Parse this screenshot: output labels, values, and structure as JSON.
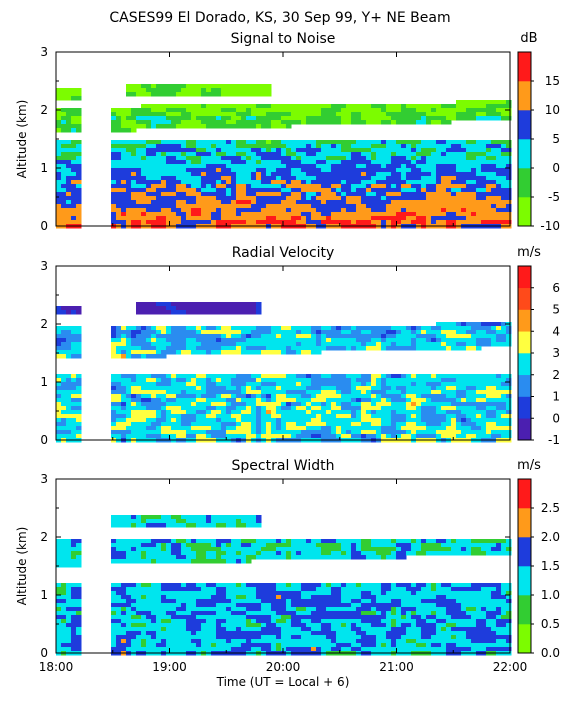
{
  "header": {
    "title": "CASES99  El Dorado, KS,  30 Sep 99, Y+ NE Beam"
  },
  "chart_data": [
    {
      "type": "heatmap",
      "title": "Signal to Noise",
      "ylabel": "Altitude (km)",
      "ylim": [
        0,
        3
      ],
      "yticks": [
        "0",
        "1",
        "2",
        "3"
      ],
      "xlim": [
        "18:00",
        "22:00"
      ],
      "colorbar": {
        "unit": "dB",
        "ticks": [
          "-10",
          "-5",
          "0",
          "5",
          "10",
          "15"
        ],
        "range": [
          -10,
          20
        ],
        "colors": [
          "#7cfc00",
          "#32cd32",
          "#00e5ee",
          "#1e3cdc",
          "#ff9a1a",
          "#ff1a1a"
        ]
      }
    },
    {
      "type": "heatmap",
      "title": "Radial Velocity",
      "ylabel": "",
      "ylim": [
        0,
        3
      ],
      "yticks": [
        "0",
        "1",
        "2",
        "3"
      ],
      "xlim": [
        "18:00",
        "22:00"
      ],
      "colorbar": {
        "unit": "m/s",
        "ticks": [
          "-1",
          "0",
          "1",
          "2",
          "3",
          "4",
          "5",
          "6"
        ],
        "range": [
          -1,
          7
        ],
        "colors": [
          "#4b1fb0",
          "#1e3cdc",
          "#2a8cf0",
          "#00e5ee",
          "#ffff40",
          "#ff9a1a",
          "#ff4a1a",
          "#ff1a1a"
        ]
      }
    },
    {
      "type": "heatmap",
      "title": "Spectral Width",
      "ylabel": "Altitude (km)",
      "ylim": [
        0,
        3
      ],
      "yticks": [
        "0",
        "1",
        "2",
        "3"
      ],
      "xlim": [
        "18:00",
        "22:00"
      ],
      "xticks": [
        "18:00",
        "19:00",
        "20:00",
        "21:00",
        "22:00"
      ],
      "xlabel": "Time (UT = Local + 6)",
      "colorbar": {
        "unit": "m/s",
        "ticks": [
          "0.0",
          "0.5",
          "1.0",
          "1.5",
          "2.0",
          "2.5"
        ],
        "range": [
          0,
          3
        ],
        "colors": [
          "#7cfc00",
          "#32cd32",
          "#00e5ee",
          "#1e3cdc",
          "#ff9a1a",
          "#ff1a1a"
        ]
      }
    }
  ]
}
